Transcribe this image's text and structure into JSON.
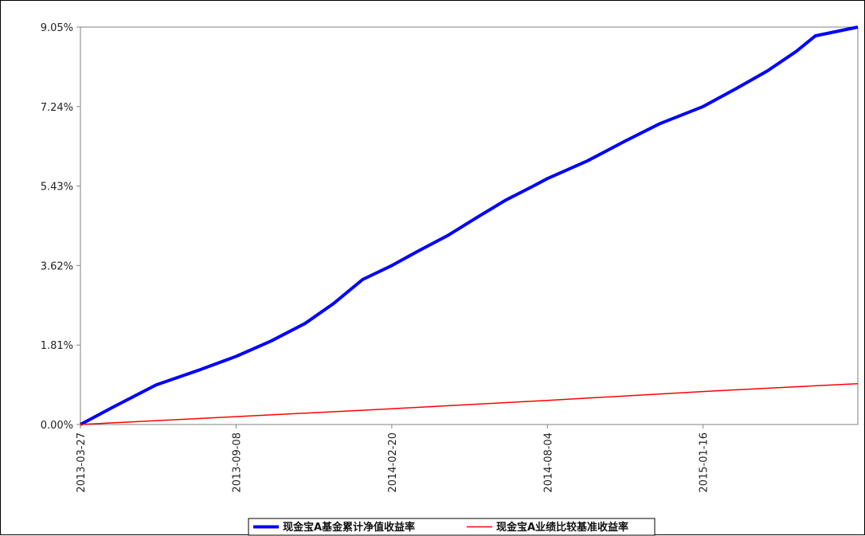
{
  "chart_data": {
    "type": "line",
    "title": "",
    "xlabel": "",
    "ylabel": "",
    "x_ticks": [
      "2013-03-27",
      "2013-09-08",
      "2014-02-20",
      "2014-08-04",
      "2015-01-16"
    ],
    "y_ticks": [
      "0.00%",
      "1.81%",
      "3.62%",
      "5.43%",
      "7.24%",
      "9.05%"
    ],
    "xlim": [
      "2013-03-27",
      "2015-06-29"
    ],
    "ylim": [
      0,
      9.05
    ],
    "grid": false,
    "legend_position": "bottom-center",
    "series": [
      {
        "name": "现金宝A基金累计净值收益率",
        "color": "#0000ff",
        "points": [
          [
            "2013-03-27",
            0.0
          ],
          [
            "2013-05-01",
            0.4
          ],
          [
            "2013-06-15",
            0.9
          ],
          [
            "2013-08-01",
            1.25
          ],
          [
            "2013-09-08",
            1.55
          ],
          [
            "2013-10-15",
            1.9
          ],
          [
            "2013-11-20",
            2.3
          ],
          [
            "2013-12-20",
            2.75
          ],
          [
            "2014-01-20",
            3.3
          ],
          [
            "2014-02-20",
            3.62
          ],
          [
            "2014-03-20",
            3.95
          ],
          [
            "2014-04-20",
            4.3
          ],
          [
            "2014-05-20",
            4.7
          ],
          [
            "2014-06-20",
            5.1
          ],
          [
            "2014-07-20",
            5.43
          ],
          [
            "2014-08-04",
            5.6
          ],
          [
            "2014-09-15",
            6.0
          ],
          [
            "2014-10-25",
            6.45
          ],
          [
            "2014-12-01",
            6.85
          ],
          [
            "2015-01-16",
            7.24
          ],
          [
            "2015-02-20",
            7.65
          ],
          [
            "2015-03-25",
            8.05
          ],
          [
            "2015-04-25",
            8.5
          ],
          [
            "2015-05-15",
            8.85
          ],
          [
            "2015-06-29",
            9.05
          ]
        ]
      },
      {
        "name": "现金宝A业绩比较基准收益率",
        "color": "#ff0000",
        "points": [
          [
            "2013-03-27",
            0.0
          ],
          [
            "2013-09-08",
            0.18
          ],
          [
            "2014-02-20",
            0.36
          ],
          [
            "2014-08-04",
            0.55
          ],
          [
            "2015-01-16",
            0.75
          ],
          [
            "2015-06-29",
            0.93
          ]
        ]
      }
    ]
  }
}
